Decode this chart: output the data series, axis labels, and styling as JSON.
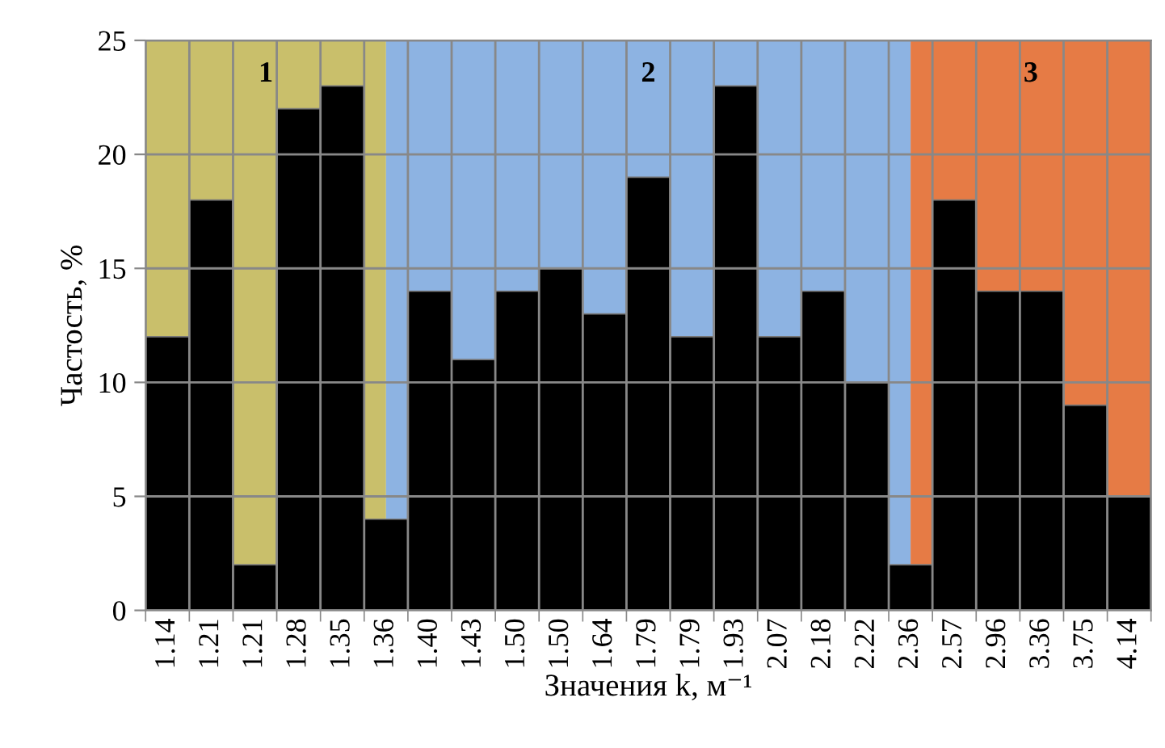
{
  "chart_data": {
    "type": "bar",
    "xlabel": "Значения k, м⁻¹",
    "ylabel": "Частость, %",
    "categories": [
      "1.14",
      "1.21",
      "1.21",
      "1.28",
      "1.35",
      "1.36",
      "1.40",
      "1.43",
      "1.50",
      "1.50",
      "1.64",
      "1.79",
      "1.79",
      "1.93",
      "2.07",
      "2.18",
      "2.22",
      "2.36",
      "2.57",
      "2.96",
      "3.36",
      "3.75",
      "4.14"
    ],
    "values": [
      12,
      18,
      2,
      22,
      23,
      4,
      14,
      11,
      14,
      15,
      13,
      19,
      12,
      23,
      12,
      14,
      10,
      2,
      18,
      14,
      14,
      9,
      5
    ],
    "color": "#000000",
    "ylim": [
      0,
      25
    ],
    "yticks": [
      0,
      5,
      10,
      15,
      20,
      25
    ],
    "grid": true,
    "bands": [
      {
        "axis": "x",
        "from": "1.14",
        "to": "1.36",
        "label": "1",
        "color": "#c9bf6b"
      },
      {
        "axis": "x",
        "from": "1.36",
        "to": "2.36",
        "label": "2",
        "color": "#8db3e2"
      },
      {
        "axis": "x",
        "from": "2.36",
        "to": "4.14",
        "label": "3",
        "color": "#e67b45"
      }
    ]
  }
}
